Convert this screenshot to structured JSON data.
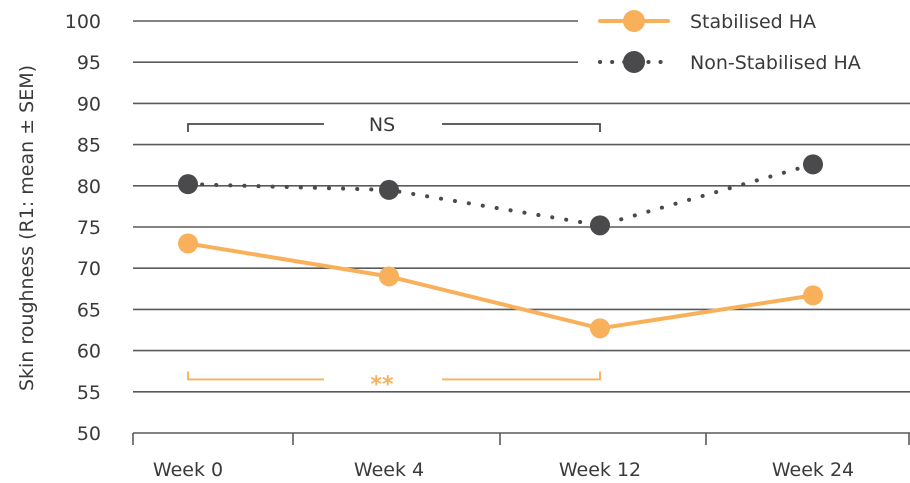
{
  "chart_data": {
    "type": "line",
    "categories": [
      "Week 0",
      "Week 4",
      "Week 12",
      "Week 24"
    ],
    "ylabel": "Skin roughness (R1: mean ± SEM)",
    "ylim": [
      50,
      100
    ],
    "yticks": [
      50,
      55,
      60,
      65,
      70,
      75,
      80,
      85,
      90,
      95,
      100
    ],
    "grid": "horizontal",
    "legend_position": "top-right",
    "series": [
      {
        "name": "Stabilised HA",
        "values": [
          73,
          69,
          62.7,
          66.7
        ],
        "color": "#f8b05a",
        "style": "solid"
      },
      {
        "name": "Non-Stabilised HA",
        "values": [
          80.2,
          79.5,
          75.2,
          82.6
        ],
        "color": "#4a4a4c",
        "style": "dotted"
      }
    ],
    "annotations": [
      {
        "text": "NS",
        "from": "Week 0",
        "to": "Week 12",
        "y": 87.5,
        "color": "#4a4a4c"
      },
      {
        "text": "**",
        "from": "Week 0",
        "to": "Week 12",
        "y": 56.5,
        "color": "#f8b05a"
      }
    ]
  }
}
